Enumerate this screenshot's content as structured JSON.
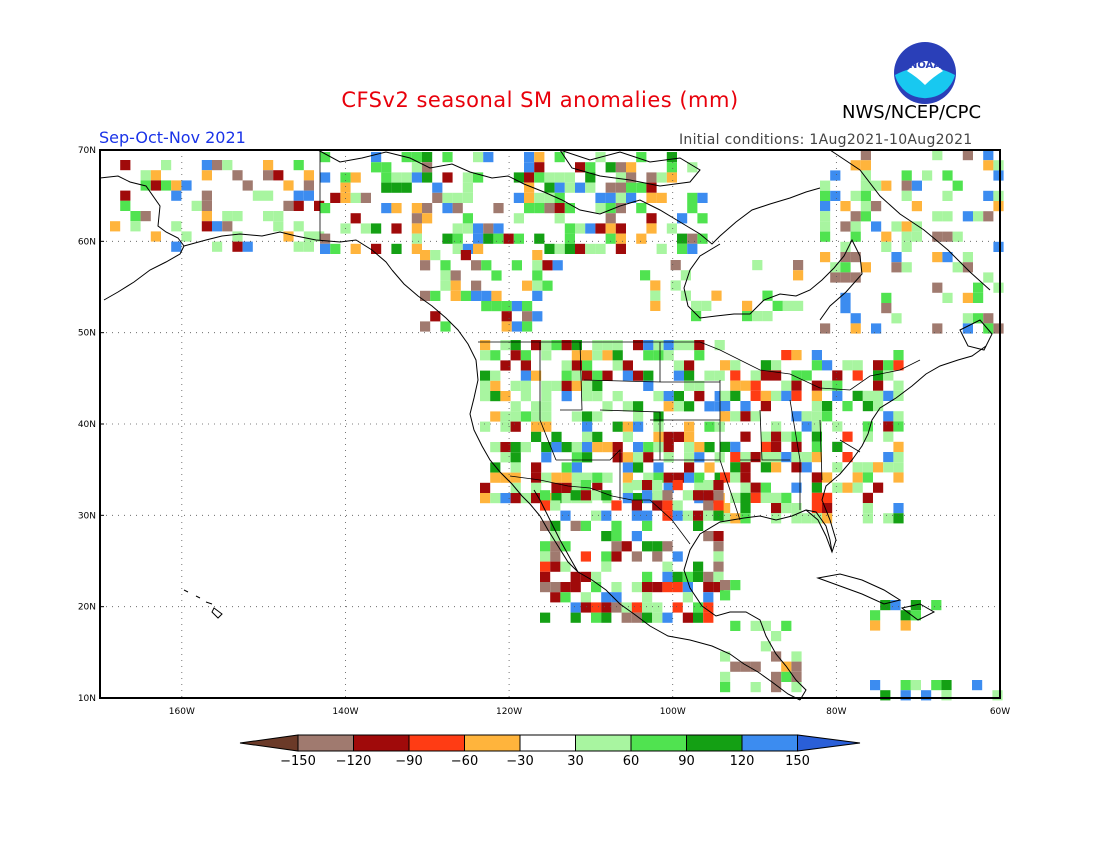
{
  "title": "CFSv2 seasonal SM anomalies (mm)",
  "agency": "NWS/NCEP/CPC",
  "logo_text": "NOAA",
  "season": "Sep-Oct-Nov 2021",
  "initial_conditions": "Initial conditions: 1Aug2021-10Aug2021",
  "map": {
    "lon_range": [
      -170,
      -60
    ],
    "lat_range": [
      10,
      70
    ],
    "lat_ticks": [
      "70N",
      "60N",
      "50N",
      "40N",
      "30N",
      "20N",
      "10N"
    ],
    "lon_ticks": [
      "160W",
      "140W",
      "120W",
      "100W",
      "80W",
      "60W"
    ],
    "grid": "dotted"
  },
  "colorbar": {
    "labels": [
      "-150",
      "-120",
      "-90",
      "-60",
      "-30",
      "30",
      "60",
      "90",
      "120",
      "150"
    ],
    "colors": [
      "#6b3a28",
      "#a07a6f",
      "#a00a0a",
      "#ff3c14",
      "#ffb43c",
      "#ffffff",
      "#a8f5a0",
      "#50e350",
      "#14a014",
      "#3c8cf0",
      "#2a5fd8"
    ]
  },
  "anomaly_colors": {
    "light_green": "#a8f5a0",
    "green": "#50e350",
    "dark_green": "#14a014",
    "blue": "#3c8cf0",
    "orange": "#ffb43c",
    "red_orange": "#ff3c14",
    "dark_red": "#a00a0a",
    "brown": "#a07a6f"
  }
}
